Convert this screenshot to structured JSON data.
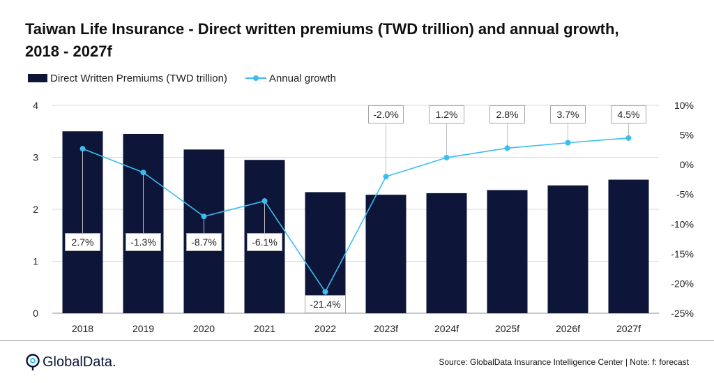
{
  "title": "Taiwan Life Insurance - Direct written premiums (TWD trillion) and annual growth, 2018 - 2027f",
  "legend": {
    "bars_label": "Direct Written Premiums (TWD trillion)",
    "line_label": "Annual growth"
  },
  "colors": {
    "bar": "#0d1538",
    "line": "#3dbcef",
    "grid": "#d9d9d9"
  },
  "chart_data": {
    "type": "bar",
    "categories": [
      "2018",
      "2019",
      "2020",
      "2021",
      "2022",
      "2023f",
      "2024f",
      "2025f",
      "2026f",
      "2027f"
    ],
    "series": [
      {
        "name": "Direct Written Premiums (TWD trillion)",
        "type": "bar",
        "axis": "left",
        "values": [
          3.5,
          3.45,
          3.15,
          2.95,
          2.33,
          2.28,
          2.31,
          2.37,
          2.46,
          2.57
        ]
      },
      {
        "name": "Annual growth",
        "type": "line",
        "axis": "right",
        "values": [
          2.7,
          -1.3,
          -8.7,
          -6.1,
          -21.4,
          -2.0,
          1.2,
          2.8,
          3.7,
          4.5
        ],
        "labels": [
          "2.7%",
          "-1.3%",
          "-8.7%",
          "-6.1%",
          "-21.4%",
          "-2.0%",
          "1.2%",
          "2.8%",
          "3.7%",
          "4.5%"
        ]
      }
    ],
    "y_left": {
      "ylim": [
        0,
        4
      ],
      "ticks": [
        "0",
        "1",
        "2",
        "3",
        "4"
      ]
    },
    "y_right": {
      "ylim": [
        -25,
        10
      ],
      "ticks": [
        "-25%",
        "-20%",
        "-15%",
        "-10%",
        "-5%",
        "0%",
        "5%",
        "10%"
      ]
    },
    "grid": true,
    "legend_position": "top-left"
  },
  "footer": {
    "logo_text": "GlobalData.",
    "source": "Source: GlobalData Insurance Intelligence Center | Note: f: forecast"
  }
}
